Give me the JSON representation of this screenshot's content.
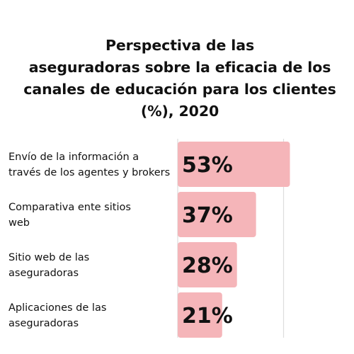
{
  "chart_data": {
    "type": "bar",
    "orientation": "horizontal",
    "title_lines": [
      "Perspectiva de las",
      "aseguradoras sobre la eficacia de los",
      "canales de educación para los clientes",
      "(%), 2020"
    ],
    "categories": [
      [
        "Envío de la información a",
        "través de los agentes y brokers"
      ],
      [
        "Comparativa ente sitios",
        "web"
      ],
      [
        "Sitio web de las",
        "aseguradoras"
      ],
      [
        "Aplicaciones de las",
        "aseguradoras"
      ]
    ],
    "values": [
      53,
      37,
      28,
      21
    ],
    "data_labels": [
      "53%",
      "37%",
      "28%",
      "21%"
    ],
    "xlim": [
      0,
      100
    ],
    "vertical_grid": true,
    "bar_color": "#f5b5b9",
    "grid_color": "#dddddd"
  }
}
